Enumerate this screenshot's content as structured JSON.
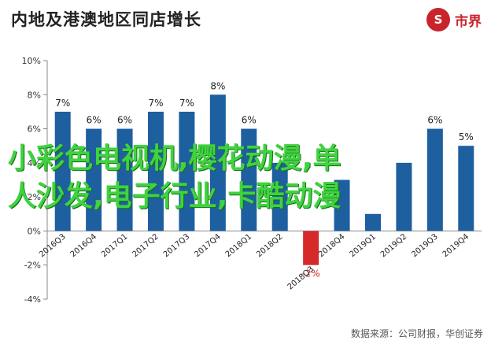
{
  "header": {
    "title": "内地及港澳地区同店增长",
    "logo_text": "市界",
    "logo_mark": "S"
  },
  "chart_data": {
    "type": "bar",
    "categories": [
      "2016Q3",
      "2016Q4",
      "2017Q1",
      "2017Q2",
      "2017Q3",
      "2017Q4",
      "2018Q1",
      "2018Q2",
      "2018Q3",
      "2018Q4",
      "2019Q1",
      "2019Q2",
      "2019Q3",
      "2019Q4"
    ],
    "values": [
      7,
      6,
      6,
      7,
      7,
      8,
      6,
      4,
      -2,
      3,
      1,
      4,
      6,
      5
    ],
    "labels": [
      "7%",
      "6%",
      "6%",
      "7%",
      "7%",
      "8%",
      "6%",
      "",
      "-2%",
      "",
      "",
      "",
      "6%",
      "5%"
    ],
    "ylim": [
      -4,
      10
    ],
    "yticks": [
      -4,
      -2,
      0,
      2,
      4,
      6,
      8,
      10
    ],
    "yticklabels": [
      "-4%",
      "-2%",
      "0%",
      "2%",
      "4%",
      "6%",
      "8%",
      "10%"
    ],
    "bar_color": "#1e5fa0",
    "negative_color": "#d62a2a",
    "grid": false
  },
  "watermark": {
    "line1": "小彩色电视机,樱花动漫,单",
    "line2": "人沙发,电子行业,卡酷动漫"
  },
  "footer": {
    "source": "数据来源：公司财报，华创证券"
  }
}
